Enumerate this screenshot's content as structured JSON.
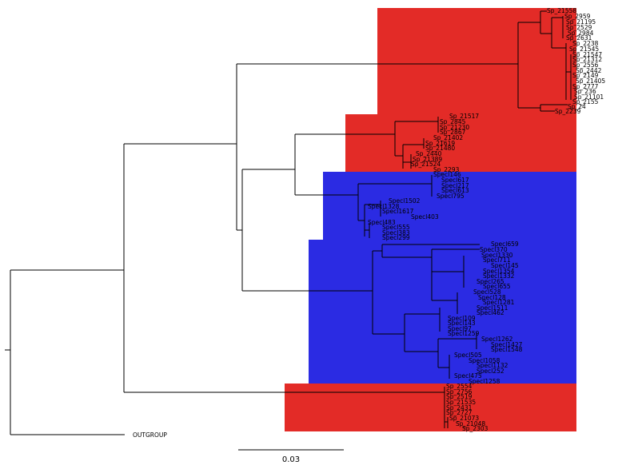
{
  "colors": {
    "clade_red": "#e32b27",
    "clade_blue": "#2b2be3",
    "line": "#000000",
    "background": "#ffffff"
  },
  "tree": {
    "outgroup_label": "OUTGROUP",
    "scale_bar_label": "0.03",
    "clades": [
      {
        "id": "clade-a",
        "color": "red",
        "labels": [
          "Sp_21558",
          "Sp_2959",
          "Sp_21195",
          "Sp_2529",
          "Sp_2984",
          "Sp_2631",
          "Sp_2238",
          "Sp_21545",
          "Sp_21547",
          "Sp_21312",
          "Sp_2556",
          "Sp_2442",
          "Sp_2149",
          "Sp_21405",
          "Sp_2777",
          "Sp_236",
          "Sp_21101",
          "Sp_2155",
          "Sp_24",
          "Sp_2239"
        ]
      },
      {
        "id": "clade-b",
        "color": "red",
        "labels": [
          "Sp_21517",
          "Sp_2845",
          "Sp_21230",
          "Sp_2867",
          "Sp_21402",
          "Sp_21619",
          "Sp_21480",
          "Sp_2440",
          "Sp_21389",
          "Sp_21524",
          "Sp_2293"
        ]
      },
      {
        "id": "clade-c",
        "color": "blue",
        "labels": [
          "Specl146",
          "Specl617",
          "Specl217",
          "Specl613",
          "Specl795",
          "Specl1502",
          "Specl1328",
          "Specl1617",
          "Specl403",
          "Specl483",
          "Specl555",
          "Specl383",
          "Specl299"
        ]
      },
      {
        "id": "clade-d",
        "color": "blue",
        "labels": [
          "Specl659",
          "Specl370",
          "Specl1330",
          "Specl711",
          "Specl145",
          "Specl1354",
          "Specl1332",
          "Specl265",
          "Specl655",
          "Specl528",
          "Specl128",
          "Specl1281",
          "Specl1511",
          "Specl462",
          "Specl109",
          "Specl143",
          "Specl97",
          "Specl1259",
          "Specl1262",
          "Specl1427",
          "Specl1548",
          "Specl505",
          "Specl1058",
          "Specl1132",
          "Specl252",
          "Specl475",
          "Specl1258"
        ]
      },
      {
        "id": "clade-e",
        "color": "red",
        "labels": [
          "Sp_2554",
          "Sp_2756",
          "Sp_2519",
          "Sp_21535",
          "Sp_2431",
          "Sp_2727",
          "Sp_21073",
          "Sp_21048",
          "Sp_2303"
        ]
      }
    ]
  }
}
